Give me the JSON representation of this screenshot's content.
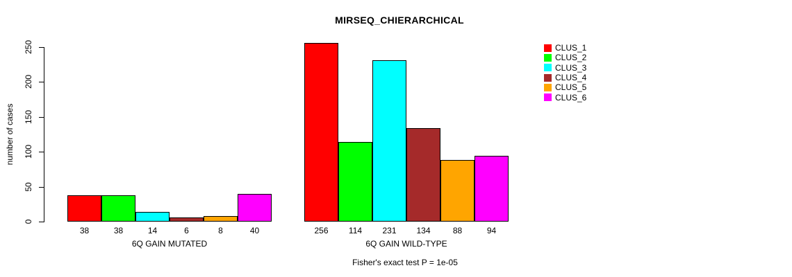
{
  "figure": {
    "title": "MIRSEQ_CHIERARCHICAL",
    "ylabel": "number of cases",
    "annotation": "Fisher's exact test P = 1e-05"
  },
  "chart_data": {
    "type": "bar",
    "title": "MIRSEQ_CHIERARCHICAL",
    "xlabel": "",
    "ylabel": "number of cases",
    "ylim": [
      0,
      250
    ],
    "yticks": [
      0,
      50,
      100,
      150,
      200,
      250
    ],
    "grid": false,
    "bar_value_labels": true,
    "legend_position": "right",
    "series_names": [
      "CLUS_1",
      "CLUS_2",
      "CLUS_3",
      "CLUS_4",
      "CLUS_5",
      "CLUS_6"
    ],
    "colors": [
      "#FF0000",
      "#00FF00",
      "#00FFFF",
      "#A52A2A",
      "#FFA500",
      "#FF00FF"
    ],
    "groups": [
      {
        "label": "6Q GAIN MUTATED",
        "values": [
          38,
          38,
          14,
          6,
          8,
          40
        ]
      },
      {
        "label": "6Q GAIN WILD-TYPE",
        "values": [
          256,
          114,
          231,
          134,
          88,
          94
        ]
      }
    ],
    "annotation": "Fisher's exact test P = 1e-05"
  }
}
